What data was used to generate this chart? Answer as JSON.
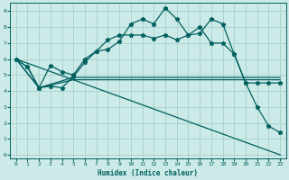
{
  "xlabel": "Humidex (Indice chaleur)",
  "bg_color": "#cceae7",
  "grid_color": "#aad4d0",
  "line_color": "#006060",
  "xlim": [
    -0.5,
    23.5
  ],
  "ylim": [
    -0.2,
    9.5
  ],
  "xticks": [
    0,
    1,
    2,
    3,
    4,
    5,
    6,
    7,
    8,
    9,
    10,
    11,
    12,
    13,
    14,
    15,
    16,
    17,
    18,
    19,
    20,
    21,
    22,
    23
  ],
  "yticks": [
    0,
    1,
    2,
    3,
    4,
    5,
    6,
    7,
    8,
    9
  ],
  "line1_x": [
    0,
    1,
    2,
    3,
    4,
    5,
    6,
    7,
    8,
    9,
    10,
    11,
    12,
    13,
    14,
    15,
    16,
    17,
    18,
    19,
    20,
    21,
    22,
    23
  ],
  "line1_y": [
    6.0,
    5.5,
    4.2,
    4.3,
    4.2,
    4.9,
    5.8,
    6.5,
    6.6,
    7.1,
    8.2,
    8.5,
    8.2,
    9.2,
    8.5,
    7.5,
    7.6,
    8.5,
    8.2,
    6.3,
    4.5,
    3.0,
    1.8,
    1.4
  ],
  "line2_x": [
    0,
    1,
    2,
    3,
    4,
    5,
    6,
    7,
    8,
    9,
    10,
    11,
    12,
    13,
    14,
    15,
    16,
    17,
    18,
    19,
    20,
    21,
    22,
    23
  ],
  "line2_y": [
    6.0,
    5.5,
    4.2,
    5.6,
    5.2,
    5.0,
    6.0,
    6.5,
    7.2,
    7.5,
    7.5,
    7.5,
    7.3,
    7.5,
    7.2,
    7.5,
    8.0,
    7.0,
    7.0,
    6.3,
    4.5,
    4.5,
    4.5,
    4.5
  ],
  "line3_x": [
    0,
    23
  ],
  "line3_y": [
    6.0,
    0.0
  ],
  "line4_x": [
    0,
    2,
    5,
    20,
    23
  ],
  "line4_y": [
    6.0,
    4.2,
    4.85,
    4.85,
    4.85
  ],
  "line5_x": [
    0,
    2,
    5,
    20,
    23
  ],
  "line5_y": [
    6.0,
    4.2,
    4.7,
    4.7,
    4.7
  ]
}
